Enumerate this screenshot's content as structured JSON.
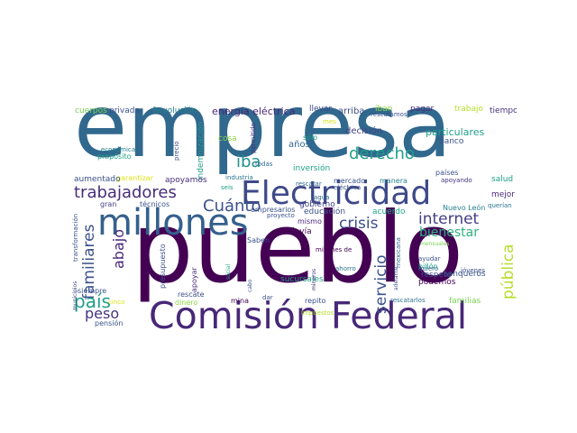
{
  "words": [
    {
      "t": "empresa",
      "c": "#31688e"
    },
    {
      "t": "pueblo",
      "c": "#440154"
    },
    {
      "t": "Comisión Federal",
      "c": "#482878"
    },
    {
      "t": "Electricidad",
      "c": "#3e4989"
    },
    {
      "t": "millones",
      "c": "#35608d"
    },
    {
      "t": "trabajadores",
      "c": "#472d7b"
    },
    {
      "t": "derecho",
      "c": "#1f9e89"
    },
    {
      "t": "iba",
      "c": "#21918c"
    },
    {
      "t": "Cuánto",
      "c": "#3b528b"
    },
    {
      "t": "internet",
      "c": "#433e85"
    },
    {
      "t": "crisis",
      "c": "#3d4e8a"
    },
    {
      "t": "bienestar",
      "c": "#2db27d"
    },
    {
      "t": "pública",
      "c": "#b5de2b"
    },
    {
      "t": "servicio",
      "c": "#3b528b"
    },
    {
      "t": "país",
      "c": "#1f9e89"
    },
    {
      "t": "peso",
      "c": "#46337e"
    },
    {
      "t": "familiares",
      "c": "#3b528b"
    },
    {
      "t": "abajo",
      "c": "#482878"
    },
    {
      "t": "energía eléctrica",
      "c": "#482475"
    },
    {
      "t": "particulares",
      "c": "#1f9e89"
    },
    {
      "t": "cuerpos",
      "c": "#7ad151"
    },
    {
      "t": "privada",
      "c": "#3b528b"
    },
    {
      "t": "Revolución",
      "c": "#26828e"
    },
    {
      "t": "llevar",
      "c": "#3e4989"
    },
    {
      "t": "arriba",
      "c": "#3b528b"
    },
    {
      "t": "iban",
      "c": "#8fd744"
    },
    {
      "t": "pagar",
      "c": "#472d7b"
    },
    {
      "t": "trabajo",
      "c": "#b5de2b"
    },
    {
      "t": "tiempo",
      "c": "#46337e"
    },
    {
      "t": "rescatamos",
      "c": "#3b528b"
    },
    {
      "t": "mes",
      "c": "#dde318"
    },
    {
      "t": "decisión",
      "c": "#414487"
    },
    {
      "t": "banco",
      "c": "#3b528b"
    },
    {
      "t": "cosa",
      "c": "#8fd744"
    },
    {
      "t": "sólo",
      "c": "#20a386"
    },
    {
      "t": "años",
      "c": "#31688e"
    },
    {
      "t": "económica",
      "c": "#26828e"
    },
    {
      "t": "propósito",
      "c": "#20a386"
    },
    {
      "t": "precio",
      "c": "#3e4989"
    },
    {
      "t": "indemnización",
      "c": "#1f9e89"
    },
    {
      "t": "permitido",
      "c": "#46337e"
    },
    {
      "t": "inversión",
      "c": "#20a386"
    },
    {
      "t": "todas",
      "c": "#31688e"
    },
    {
      "t": "países",
      "c": "#3b528b"
    },
    {
      "t": "salud",
      "c": "#1f9e89"
    },
    {
      "t": "garantizar",
      "c": "#dde318"
    },
    {
      "t": "apoyamos",
      "c": "#472d7b"
    },
    {
      "t": "aumentado",
      "c": "#3b528b"
    },
    {
      "t": "industria",
      "c": "#2c728e"
    },
    {
      "t": "mercado",
      "c": "#3b528b"
    },
    {
      "t": "manera",
      "c": "#26828e"
    },
    {
      "t": "apoyando",
      "c": "#46337e"
    },
    {
      "t": "seis",
      "c": "#1f9e89"
    },
    {
      "t": "rescatar",
      "c": "#31688e"
    },
    {
      "t": "eléctrica",
      "c": "#3b528b"
    },
    {
      "t": "mejor",
      "c": "#482878"
    },
    {
      "t": "querían",
      "c": "#2c728e"
    },
    {
      "t": "técnicos",
      "c": "#3b528b"
    },
    {
      "t": "gran",
      "c": "#433e85"
    },
    {
      "t": "empresarios",
      "c": "#3b528b"
    },
    {
      "t": "agua",
      "c": "#31688e"
    },
    {
      "t": "gobierno",
      "c": "#414487"
    },
    {
      "t": "educación",
      "c": "#3b528b"
    },
    {
      "t": "Nuevo León",
      "c": "#26828e"
    },
    {
      "t": "proyecto",
      "c": "#3b528b"
    },
    {
      "t": "mismo",
      "c": "#482878"
    },
    {
      "t": "acuerdo",
      "c": "#22a884"
    },
    {
      "t": "transformación",
      "c": "#3b528b"
    },
    {
      "t": "todavía",
      "c": "#440154"
    },
    {
      "t": "mensuales",
      "c": "#7ad151"
    },
    {
      "t": "Saben",
      "c": "#3b528b"
    },
    {
      "t": "municipios",
      "c": "#3e4989"
    },
    {
      "t": "millones de",
      "c": "#440154"
    },
    {
      "t": "ahorro",
      "c": "#2c728e"
    },
    {
      "t": "adelante",
      "c": "#3b528b"
    },
    {
      "t": "mexicana",
      "c": "#31688e"
    },
    {
      "t": "billón",
      "c": "#1f9e89"
    },
    {
      "t": "sanqueros",
      "c": "#3b528b"
    },
    {
      "t": "social",
      "c": "#22a884"
    },
    {
      "t": "ayudar",
      "c": "#3b528b"
    },
    {
      "t": "presupuesto",
      "c": "#3b528b"
    },
    {
      "t": "apoyar",
      "c": "#482878"
    },
    {
      "t": "respeto",
      "c": "#3b528b"
    },
    {
      "t": "quiero",
      "c": "#31688e"
    },
    {
      "t": "jóvenes",
      "c": "#3b528b"
    },
    {
      "t": "siempre",
      "c": "#3b528b"
    },
    {
      "t": "cabo",
      "c": "#3b528b"
    },
    {
      "t": "sucursales",
      "c": "#20a386"
    },
    {
      "t": "mineros",
      "c": "#46337e"
    },
    {
      "t": "podemos",
      "c": "#440154"
    },
    {
      "t": "mina",
      "c": "#440154"
    },
    {
      "t": "rescate",
      "c": "#3b528b"
    },
    {
      "t": "familias",
      "c": "#7ad151"
    },
    {
      "t": "repito",
      "c": "#3b528b"
    },
    {
      "t": "rescatarlos",
      "c": "#2c728e"
    },
    {
      "t": "dinero",
      "c": "#8fd744"
    },
    {
      "t": "dar",
      "c": "#3b528b"
    },
    {
      "t": "cinco",
      "c": "#dde318"
    },
    {
      "t": "impuestos",
      "c": "#b5de2b"
    },
    {
      "t": "pensión",
      "c": "#3b528b"
    }
  ]
}
